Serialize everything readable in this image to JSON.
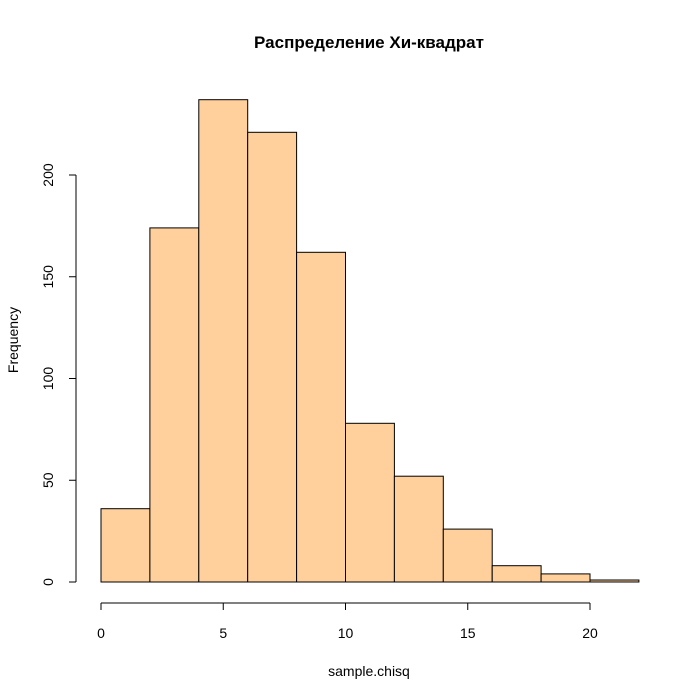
{
  "chart_data": {
    "type": "bar",
    "title": "Распределение Хи-квадрат",
    "xlabel": "sample.chisq",
    "ylabel": "Frequency",
    "bins": [
      {
        "from": 0,
        "to": 2,
        "count": 36
      },
      {
        "from": 2,
        "to": 4,
        "count": 174
      },
      {
        "from": 4,
        "to": 6,
        "count": 237
      },
      {
        "from": 6,
        "to": 8,
        "count": 221
      },
      {
        "from": 8,
        "to": 10,
        "count": 162
      },
      {
        "from": 10,
        "to": 12,
        "count": 78
      },
      {
        "from": 12,
        "to": 14,
        "count": 52
      },
      {
        "from": 14,
        "to": 16,
        "count": 26
      },
      {
        "from": 16,
        "to": 18,
        "count": 8
      },
      {
        "from": 18,
        "to": 20,
        "count": 4
      },
      {
        "from": 20,
        "to": 22,
        "count": 1
      }
    ],
    "xticks": [
      "0",
      "5",
      "10",
      "15",
      "20"
    ],
    "yticks": [
      "0",
      "50",
      "100",
      "150",
      "200"
    ],
    "xlim": [
      0,
      22
    ],
    "ylim": [
      0,
      240
    ],
    "grid": false,
    "bar_color": "#FFD09B",
    "edge_color": "#000000"
  }
}
